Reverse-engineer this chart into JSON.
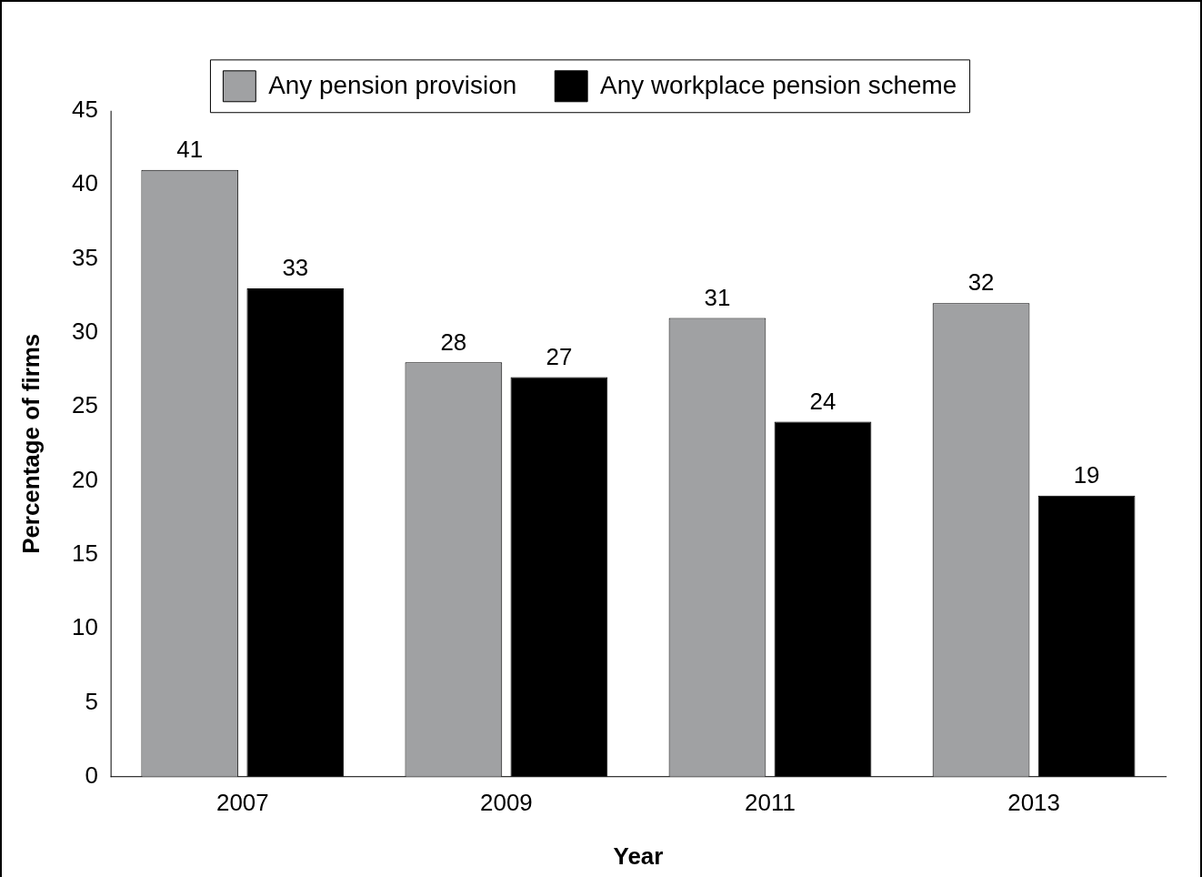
{
  "chart_data": {
    "type": "bar",
    "xlabel": "Year",
    "ylabel": "Percentage of firms",
    "categories": [
      "2007",
      "2009",
      "2011",
      "2013"
    ],
    "series": [
      {
        "name": "Any pension provision",
        "color": "#a0a1a3",
        "values": [
          41,
          28,
          31,
          32
        ]
      },
      {
        "name": "Any workplace pension scheme",
        "color": "#000000",
        "values": [
          33,
          27,
          24,
          19
        ]
      }
    ],
    "ylim": [
      0,
      45
    ],
    "yticks": [
      0,
      5,
      10,
      15,
      20,
      25,
      30,
      35,
      40,
      45
    ],
    "grid": false,
    "legend": "top",
    "data_labels": true
  }
}
